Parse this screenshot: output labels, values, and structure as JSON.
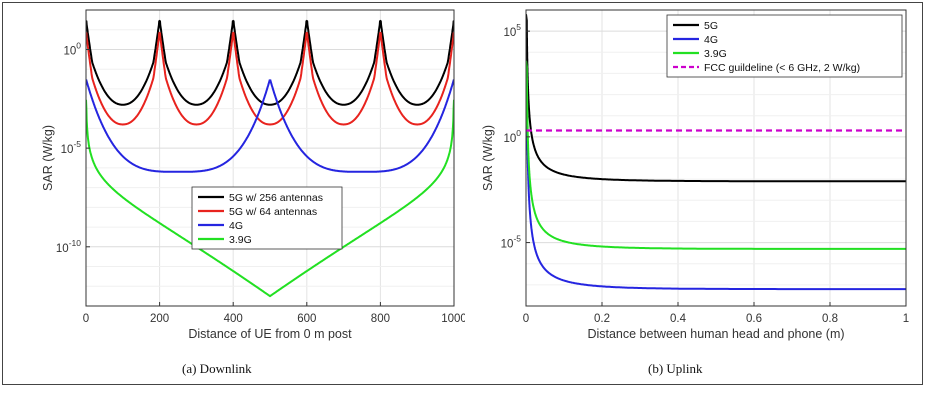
{
  "chart_data": [
    {
      "type": "line",
      "caption": "(a) Downlink",
      "xlabel": "Distance of UE from 0 m post",
      "ylabel": "SAR (W/kg)",
      "xlim": [
        0,
        1000
      ],
      "ylog": true,
      "ylim_exp": [
        -13,
        2
      ],
      "x_ticks": [
        0,
        200,
        400,
        600,
        800,
        1000
      ],
      "y_ticks": [
        {
          "exp": 0,
          "label": "10"
        },
        {
          "exp": -5,
          "label": "10"
        },
        {
          "exp": -10,
          "label": "10"
        }
      ],
      "y_tick_sup": [
        "0",
        "-5",
        "-10"
      ],
      "grid": true,
      "legend_position": "center-right",
      "series": [
        {
          "name": "5G w/ 256 antennas",
          "color": "#000000",
          "profile": "periodic",
          "peak_exp": 1.5,
          "min_exp": -2.8,
          "period": 200
        },
        {
          "name": "5G w/ 64 antennas",
          "color": "#e8231e",
          "profile": "periodic",
          "peak_exp": 0.9,
          "min_exp": -3.8,
          "period": 200
        },
        {
          "name": "4G",
          "color": "#2525e0",
          "profile": "dip",
          "peak_exp": -1.5,
          "min_exp": -6.2,
          "period": 500
        },
        {
          "name": "3.9G",
          "color": "#22e022",
          "profile": "bowl",
          "peak_exp": -3.0,
          "min_exp": -12.5,
          "period": 1000
        }
      ]
    },
    {
      "type": "line",
      "caption": "(b) Uplink",
      "xlabel": "Distance between human head and phone (m)",
      "ylabel": "SAR (W/kg)",
      "xlim": [
        0,
        1
      ],
      "ylog": true,
      "ylim_exp": [
        -8,
        6
      ],
      "x_ticks": [
        0,
        0.2,
        0.4,
        0.6,
        0.8,
        1
      ],
      "y_ticks": [
        {
          "exp": 5,
          "label": "10"
        },
        {
          "exp": 0,
          "label": "10"
        },
        {
          "exp": -5,
          "label": "10"
        }
      ],
      "y_tick_sup": [
        "5",
        "0",
        "-5"
      ],
      "grid": true,
      "legend_position": "top-right",
      "series": [
        {
          "name": "5G",
          "color": "#000000",
          "start_exp": 5.5,
          "end_exp": -2.1
        },
        {
          "name": "4G",
          "color": "#2525e0",
          "start_exp": 2.5,
          "end_exp": -7.2
        },
        {
          "name": "3.9G",
          "color": "#22e022",
          "start_exp": 3.3,
          "end_exp": -5.3
        },
        {
          "name": "FCC guildeline (< 6 GHz, 2 W/kg)",
          "color": "#cc00cc",
          "dashed": true,
          "value": 2
        }
      ]
    }
  ]
}
